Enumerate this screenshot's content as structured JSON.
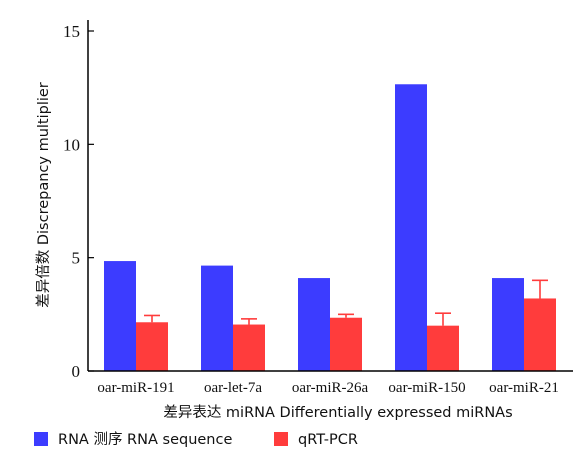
{
  "chart_data": {
    "type": "bar",
    "xlabel": "差异表达 miRNA  Differentially  expressed  miRNAs",
    "ylabel": "差异倍数  Discrepancy  multiplier",
    "ylim": [
      0,
      15
    ],
    "yticks": [
      "0",
      "5",
      "10",
      "15"
    ],
    "categories": [
      "oar-miR-191",
      "oar-let-7a",
      "oar-miR-26a",
      "oar-miR-150",
      "oar-miR-21"
    ],
    "series": [
      {
        "name": "RNA 测序  RNA  sequence",
        "color": "#3c3cff",
        "values": [
          4.85,
          4.65,
          4.1,
          12.65,
          4.1
        ],
        "errors": [
          0,
          0,
          0,
          0,
          0
        ]
      },
      {
        "name": "qRT-PCR",
        "color": "#ff3c3c",
        "values": [
          2.15,
          2.05,
          2.35,
          2.0,
          3.2
        ],
        "errors": [
          0.3,
          0.25,
          0.15,
          0.55,
          0.8
        ]
      }
    ],
    "legend_position": "bottom-left",
    "grid": false
  }
}
